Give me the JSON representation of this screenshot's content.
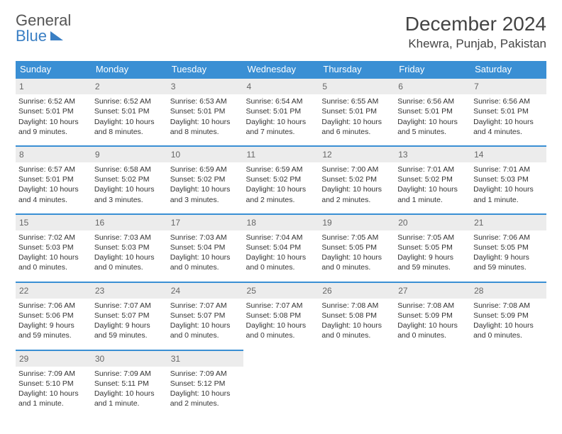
{
  "logo": {
    "line1": "General",
    "line2": "Blue"
  },
  "title": "December 2024",
  "location": "Khewra, Punjab, Pakistan",
  "day_headers": [
    "Sunday",
    "Monday",
    "Tuesday",
    "Wednesday",
    "Thursday",
    "Friday",
    "Saturday"
  ],
  "colors": {
    "header_bg": "#3a8fd4",
    "header_text": "#ffffff",
    "daynum_bg": "#ececec",
    "daynum_border": "#3a8fd4",
    "logo_blue": "#3a7fc4"
  },
  "weeks": [
    [
      {
        "n": "1",
        "sunrise": "Sunrise: 6:52 AM",
        "sunset": "Sunset: 5:01 PM",
        "day1": "Daylight: 10 hours",
        "day2": "and 9 minutes."
      },
      {
        "n": "2",
        "sunrise": "Sunrise: 6:52 AM",
        "sunset": "Sunset: 5:01 PM",
        "day1": "Daylight: 10 hours",
        "day2": "and 8 minutes."
      },
      {
        "n": "3",
        "sunrise": "Sunrise: 6:53 AM",
        "sunset": "Sunset: 5:01 PM",
        "day1": "Daylight: 10 hours",
        "day2": "and 8 minutes."
      },
      {
        "n": "4",
        "sunrise": "Sunrise: 6:54 AM",
        "sunset": "Sunset: 5:01 PM",
        "day1": "Daylight: 10 hours",
        "day2": "and 7 minutes."
      },
      {
        "n": "5",
        "sunrise": "Sunrise: 6:55 AM",
        "sunset": "Sunset: 5:01 PM",
        "day1": "Daylight: 10 hours",
        "day2": "and 6 minutes."
      },
      {
        "n": "6",
        "sunrise": "Sunrise: 6:56 AM",
        "sunset": "Sunset: 5:01 PM",
        "day1": "Daylight: 10 hours",
        "day2": "and 5 minutes."
      },
      {
        "n": "7",
        "sunrise": "Sunrise: 6:56 AM",
        "sunset": "Sunset: 5:01 PM",
        "day1": "Daylight: 10 hours",
        "day2": "and 4 minutes."
      }
    ],
    [
      {
        "n": "8",
        "sunrise": "Sunrise: 6:57 AM",
        "sunset": "Sunset: 5:01 PM",
        "day1": "Daylight: 10 hours",
        "day2": "and 4 minutes."
      },
      {
        "n": "9",
        "sunrise": "Sunrise: 6:58 AM",
        "sunset": "Sunset: 5:02 PM",
        "day1": "Daylight: 10 hours",
        "day2": "and 3 minutes."
      },
      {
        "n": "10",
        "sunrise": "Sunrise: 6:59 AM",
        "sunset": "Sunset: 5:02 PM",
        "day1": "Daylight: 10 hours",
        "day2": "and 3 minutes."
      },
      {
        "n": "11",
        "sunrise": "Sunrise: 6:59 AM",
        "sunset": "Sunset: 5:02 PM",
        "day1": "Daylight: 10 hours",
        "day2": "and 2 minutes."
      },
      {
        "n": "12",
        "sunrise": "Sunrise: 7:00 AM",
        "sunset": "Sunset: 5:02 PM",
        "day1": "Daylight: 10 hours",
        "day2": "and 2 minutes."
      },
      {
        "n": "13",
        "sunrise": "Sunrise: 7:01 AM",
        "sunset": "Sunset: 5:02 PM",
        "day1": "Daylight: 10 hours",
        "day2": "and 1 minute."
      },
      {
        "n": "14",
        "sunrise": "Sunrise: 7:01 AM",
        "sunset": "Sunset: 5:03 PM",
        "day1": "Daylight: 10 hours",
        "day2": "and 1 minute."
      }
    ],
    [
      {
        "n": "15",
        "sunrise": "Sunrise: 7:02 AM",
        "sunset": "Sunset: 5:03 PM",
        "day1": "Daylight: 10 hours",
        "day2": "and 0 minutes."
      },
      {
        "n": "16",
        "sunrise": "Sunrise: 7:03 AM",
        "sunset": "Sunset: 5:03 PM",
        "day1": "Daylight: 10 hours",
        "day2": "and 0 minutes."
      },
      {
        "n": "17",
        "sunrise": "Sunrise: 7:03 AM",
        "sunset": "Sunset: 5:04 PM",
        "day1": "Daylight: 10 hours",
        "day2": "and 0 minutes."
      },
      {
        "n": "18",
        "sunrise": "Sunrise: 7:04 AM",
        "sunset": "Sunset: 5:04 PM",
        "day1": "Daylight: 10 hours",
        "day2": "and 0 minutes."
      },
      {
        "n": "19",
        "sunrise": "Sunrise: 7:05 AM",
        "sunset": "Sunset: 5:05 PM",
        "day1": "Daylight: 10 hours",
        "day2": "and 0 minutes."
      },
      {
        "n": "20",
        "sunrise": "Sunrise: 7:05 AM",
        "sunset": "Sunset: 5:05 PM",
        "day1": "Daylight: 9 hours",
        "day2": "and 59 minutes."
      },
      {
        "n": "21",
        "sunrise": "Sunrise: 7:06 AM",
        "sunset": "Sunset: 5:05 PM",
        "day1": "Daylight: 9 hours",
        "day2": "and 59 minutes."
      }
    ],
    [
      {
        "n": "22",
        "sunrise": "Sunrise: 7:06 AM",
        "sunset": "Sunset: 5:06 PM",
        "day1": "Daylight: 9 hours",
        "day2": "and 59 minutes."
      },
      {
        "n": "23",
        "sunrise": "Sunrise: 7:07 AM",
        "sunset": "Sunset: 5:07 PM",
        "day1": "Daylight: 9 hours",
        "day2": "and 59 minutes."
      },
      {
        "n": "24",
        "sunrise": "Sunrise: 7:07 AM",
        "sunset": "Sunset: 5:07 PM",
        "day1": "Daylight: 10 hours",
        "day2": "and 0 minutes."
      },
      {
        "n": "25",
        "sunrise": "Sunrise: 7:07 AM",
        "sunset": "Sunset: 5:08 PM",
        "day1": "Daylight: 10 hours",
        "day2": "and 0 minutes."
      },
      {
        "n": "26",
        "sunrise": "Sunrise: 7:08 AM",
        "sunset": "Sunset: 5:08 PM",
        "day1": "Daylight: 10 hours",
        "day2": "and 0 minutes."
      },
      {
        "n": "27",
        "sunrise": "Sunrise: 7:08 AM",
        "sunset": "Sunset: 5:09 PM",
        "day1": "Daylight: 10 hours",
        "day2": "and 0 minutes."
      },
      {
        "n": "28",
        "sunrise": "Sunrise: 7:08 AM",
        "sunset": "Sunset: 5:09 PM",
        "day1": "Daylight: 10 hours",
        "day2": "and 0 minutes."
      }
    ],
    [
      {
        "n": "29",
        "sunrise": "Sunrise: 7:09 AM",
        "sunset": "Sunset: 5:10 PM",
        "day1": "Daylight: 10 hours",
        "day2": "and 1 minute."
      },
      {
        "n": "30",
        "sunrise": "Sunrise: 7:09 AM",
        "sunset": "Sunset: 5:11 PM",
        "day1": "Daylight: 10 hours",
        "day2": "and 1 minute."
      },
      {
        "n": "31",
        "sunrise": "Sunrise: 7:09 AM",
        "sunset": "Sunset: 5:12 PM",
        "day1": "Daylight: 10 hours",
        "day2": "and 2 minutes."
      },
      null,
      null,
      null,
      null
    ]
  ]
}
